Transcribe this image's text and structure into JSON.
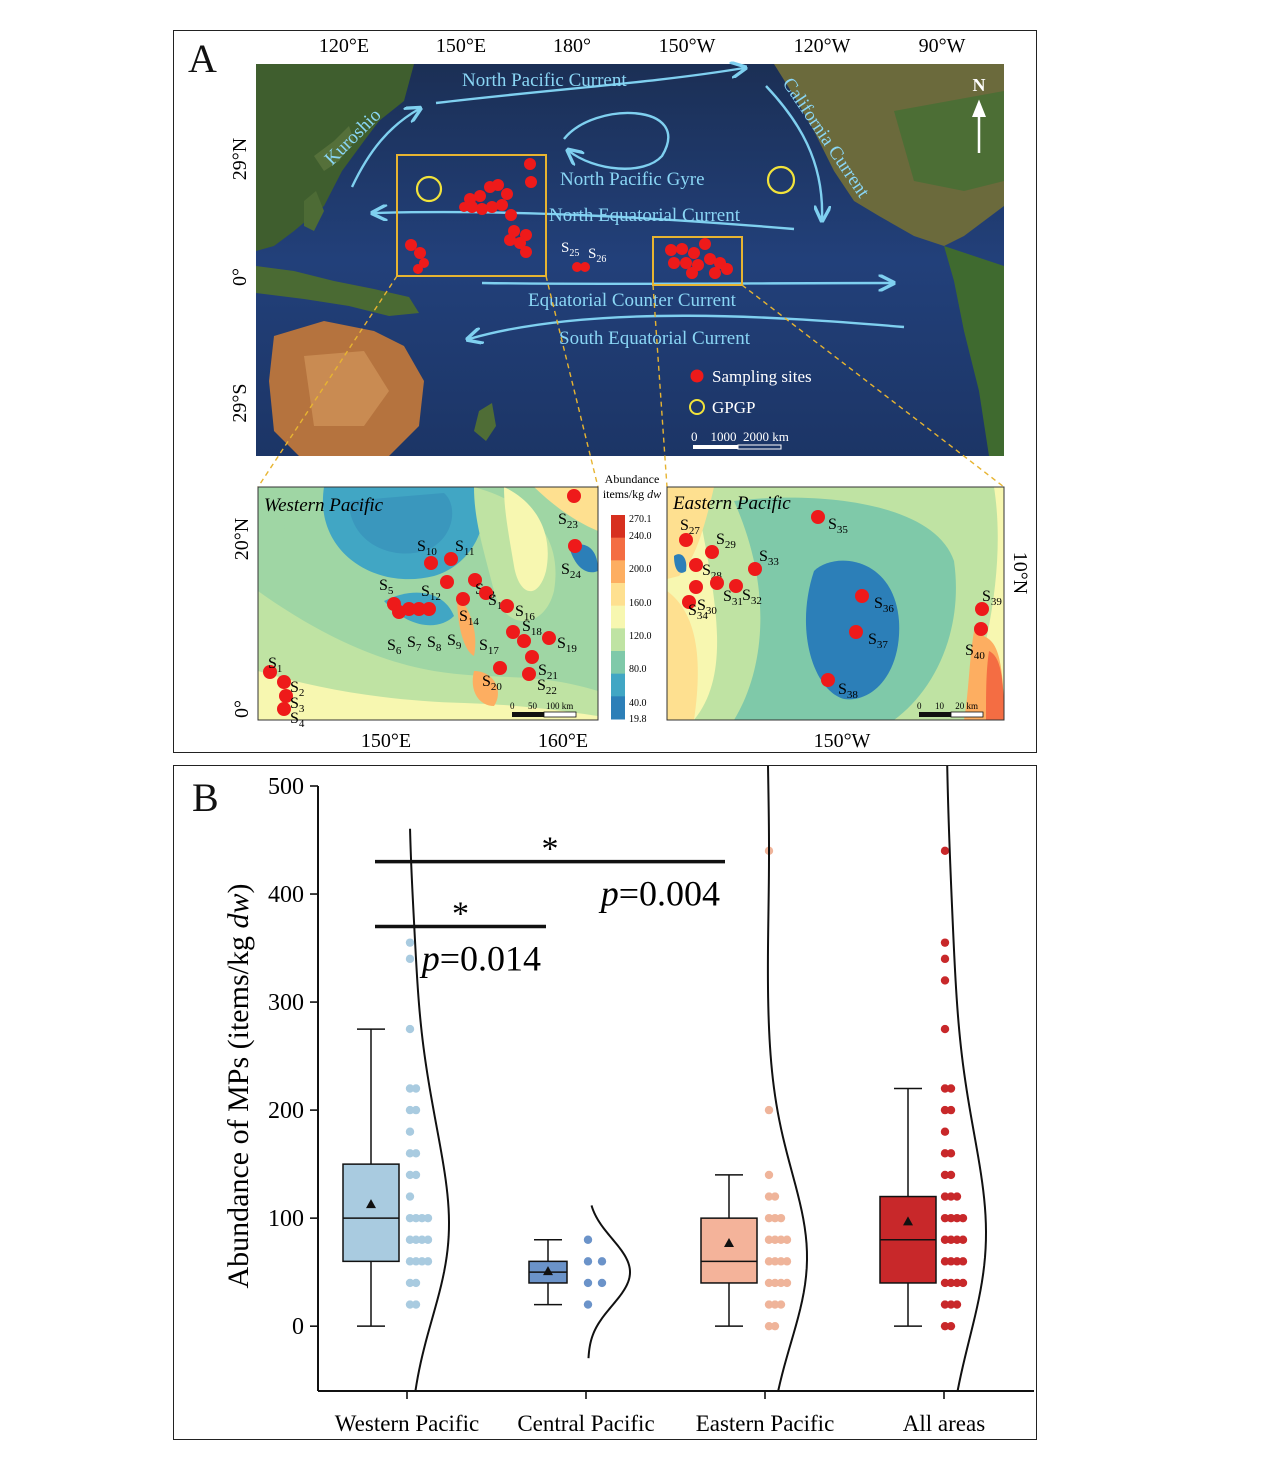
{
  "figure": {
    "panel_a": {
      "letter": "A",
      "top_ticks": [
        "120°E",
        "150°E",
        "180°",
        "150°W",
        "120°W",
        "90°W"
      ],
      "left_ticks": [
        "29°N",
        "0°",
        "29°S"
      ],
      "north_label": "N",
      "currents": {
        "kuroshio": "Kuroshio",
        "north_pacific": "North Pacific Current",
        "california": "California Current",
        "gyre": "North Pacific Gyre",
        "north_equatorial": "North Equatorial Current",
        "equatorial_counter": "Equatorial Counter Current",
        "south_equatorial": "South Equatorial Current"
      },
      "central_sites": [
        "S",
        "25",
        "S",
        "26"
      ],
      "legend": {
        "sites": "Sampling sites",
        "gpgp": "GPGP",
        "scale": "0    1000  2000 km"
      },
      "colorbar": {
        "title_line1": "Abundance",
        "title_line2": "items/kg ",
        "title_unit": "dw",
        "ticks": [
          "270.1",
          "240.0",
          "200.0",
          "160.0",
          "120.0",
          "80.0",
          "40.0",
          "19.8"
        ],
        "colors": [
          "#d7301f",
          "#f46d43",
          "#fdae61",
          "#fee090",
          "#f7f7b0",
          "#bfe3a3",
          "#7fc9a9",
          "#41a6c4",
          "#2c7fb8"
        ]
      },
      "western": {
        "title": "Western Pacific",
        "x_ticks": [
          "150°E",
          "160°E"
        ],
        "y_ticks": [
          "20°N",
          "0°"
        ],
        "scale": "0      50    100 km",
        "sites": [
          {
            "n": "1"
          },
          {
            "n": "2"
          },
          {
            "n": "3"
          },
          {
            "n": "4"
          },
          {
            "n": "5"
          },
          {
            "n": "6"
          },
          {
            "n": "7"
          },
          {
            "n": "8"
          },
          {
            "n": "9"
          },
          {
            "n": "10"
          },
          {
            "n": "11"
          },
          {
            "n": "12"
          },
          {
            "n": "13"
          },
          {
            "n": "14"
          },
          {
            "n": "15"
          },
          {
            "n": "16"
          },
          {
            "n": "17"
          },
          {
            "n": "18"
          },
          {
            "n": "19"
          },
          {
            "n": "20"
          },
          {
            "n": "21"
          },
          {
            "n": "22"
          },
          {
            "n": "23"
          },
          {
            "n": "24"
          }
        ]
      },
      "eastern": {
        "title": "Eastern Pacific",
        "x_ticks": [
          "150°W"
        ],
        "y_ticks": [
          "10°N"
        ],
        "scale": "0      10     20 km",
        "sites": [
          {
            "n": "27"
          },
          {
            "n": "28"
          },
          {
            "n": "29"
          },
          {
            "n": "30"
          },
          {
            "n": "31"
          },
          {
            "n": "32"
          },
          {
            "n": "33"
          },
          {
            "n": "34"
          },
          {
            "n": "35"
          },
          {
            "n": "36"
          },
          {
            "n": "37"
          },
          {
            "n": "38"
          },
          {
            "n": "39"
          },
          {
            "n": "40"
          }
        ]
      }
    },
    "panel_b": {
      "letter": "B",
      "chart_data": {
        "type": "box",
        "ylabel_prefix": "Abundance of MPs (items/kg ",
        "ylabel_italic": "dw",
        "ylabel_suffix": ")",
        "ylim": [
          -60,
          500
        ],
        "yticks": [
          0,
          100,
          200,
          300,
          400,
          500
        ],
        "categories": [
          "Western Pacific",
          "Central Pacific",
          "Eastern Pacific",
          "All areas"
        ],
        "colors": {
          "western_box": "#a9cbe0",
          "western_dots": "#a9cbe0",
          "central_box": "#6b93c9",
          "central_dots": "#6b93c9",
          "eastern_box": "#f4b39a",
          "eastern_dots": "#efb49a",
          "all_box": "#c8282a",
          "all_dots": "#c8282a"
        },
        "boxes": [
          {
            "category": "Western Pacific",
            "whisker_low": 0,
            "q1": 60,
            "median": 100,
            "q3": 150,
            "whisker_high": 275,
            "mean": 113
          },
          {
            "category": "Central Pacific",
            "whisker_low": 20,
            "q1": 40,
            "median": 50,
            "q3": 60,
            "whisker_high": 80,
            "mean": 51
          },
          {
            "category": "Eastern Pacific",
            "whisker_low": 0,
            "q1": 40,
            "median": 60,
            "q3": 100,
            "whisker_high": 140,
            "mean": 77
          },
          {
            "category": "All areas",
            "whisker_low": 0,
            "q1": 40,
            "median": 80,
            "q3": 120,
            "whisker_high": 220,
            "mean": 97
          }
        ],
        "points": [
          {
            "category": "Western Pacific",
            "values": [
              355,
              340,
              275,
              220,
              220,
              200,
              200,
              180,
              160,
              160,
              140,
              140,
              120,
              100,
              100,
              100,
              100,
              80,
              80,
              80,
              80,
              60,
              60,
              60,
              60,
              40,
              40,
              20,
              20
            ]
          },
          {
            "category": "Central Pacific",
            "values": [
              80,
              60,
              60,
              40,
              40,
              20
            ]
          },
          {
            "category": "Eastern Pacific",
            "values": [
              440,
              200,
              140,
              120,
              120,
              100,
              100,
              100,
              80,
              80,
              80,
              80,
              60,
              60,
              60,
              60,
              40,
              40,
              40,
              40,
              20,
              20,
              20,
              0,
              0
            ]
          },
          {
            "category": "All areas",
            "values": [
              440,
              355,
              340,
              320,
              275,
              220,
              220,
              200,
              200,
              180,
              160,
              160,
              140,
              140,
              120,
              120,
              120,
              100,
              100,
              100,
              100,
              80,
              80,
              80,
              80,
              60,
              60,
              60,
              60,
              40,
              40,
              40,
              40,
              20,
              20,
              20,
              0,
              0
            ]
          }
        ],
        "significance": [
          {
            "from": "Western Pacific",
            "to": "Central Pacific",
            "star": "*",
            "p_italic": "p",
            "p_value": "=0.014",
            "level": 370
          },
          {
            "from": "Western Pacific",
            "to": "Eastern Pacific",
            "star": "*",
            "p_italic": "p",
            "p_value": "=0.004",
            "level": 430
          }
        ]
      }
    }
  }
}
